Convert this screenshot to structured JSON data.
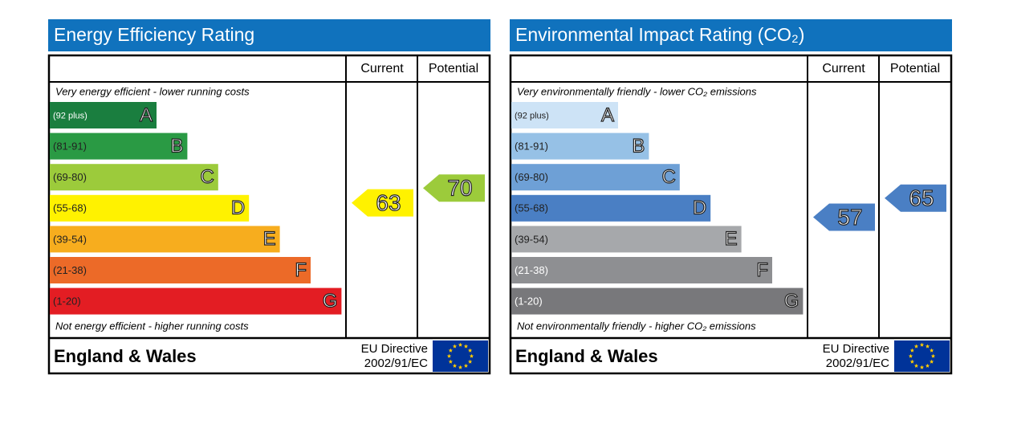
{
  "panels": [
    {
      "title": "Energy Efficiency Rating",
      "headers": [
        "Current",
        "Potential"
      ],
      "top_note": "Very energy efficient - lower running costs",
      "bottom_note": "Not energy efficient - higher running costs",
      "bands": [
        {
          "range": "(92 plus)",
          "letter": "A",
          "color": "#1a7e3f",
          "label_color": "#ffffff"
        },
        {
          "range": "(81-91)",
          "letter": "B",
          "color": "#2a9a44",
          "label_color": "#222222"
        },
        {
          "range": "(69-80)",
          "letter": "C",
          "color": "#9ccb3b",
          "label_color": "#222222"
        },
        {
          "range": "(55-68)",
          "letter": "D",
          "color": "#fff200",
          "label_color": "#222222"
        },
        {
          "range": "(39-54)",
          "letter": "E",
          "color": "#f7ad1e",
          "label_color": "#222222"
        },
        {
          "range": "(21-38)",
          "letter": "F",
          "color": "#ec6a28",
          "label_color": "#222222"
        },
        {
          "range": "(1-20)",
          "letter": "G",
          "color": "#e31d23",
          "label_color": "#222222"
        }
      ],
      "current": {
        "value": "63",
        "color": "#fff200"
      },
      "potential": {
        "value": "70",
        "color": "#9ccb3b"
      },
      "region": "England & Wales",
      "directive": [
        "EU Directive",
        "2002/91/EC"
      ]
    },
    {
      "title": "Environmental Impact Rating (CO₂)",
      "headers": [
        "Current",
        "Potential"
      ],
      "top_note": "Very environmentally friendly - lower CO₂  emissions",
      "bottom_note": "Not environmentally friendly - higher CO₂  emissions",
      "bands": [
        {
          "range": "(92 plus)",
          "letter": "A",
          "color": "#cde3f6",
          "label_color": "#222222"
        },
        {
          "range": "(81-91)",
          "letter": "B",
          "color": "#96c1e6",
          "label_color": "#222222"
        },
        {
          "range": "(69-80)",
          "letter": "C",
          "color": "#6ea0d6",
          "label_color": "#222222"
        },
        {
          "range": "(55-68)",
          "letter": "D",
          "color": "#4a7fc4",
          "label_color": "#222222"
        },
        {
          "range": "(39-54)",
          "letter": "E",
          "color": "#a6a8ab",
          "label_color": "#222222"
        },
        {
          "range": "(21-38)",
          "letter": "F",
          "color": "#8e8f92",
          "label_color": "#ffffff"
        },
        {
          "range": "(1-20)",
          "letter": "G",
          "color": "#78787b",
          "label_color": "#ffffff"
        }
      ],
      "current": {
        "value": "57",
        "color": "#4a7fc4"
      },
      "potential": {
        "value": "65",
        "color": "#4a7fc4"
      },
      "region": "England & Wales",
      "directive": [
        "EU Directive",
        "2002/91/EC"
      ]
    }
  ]
}
